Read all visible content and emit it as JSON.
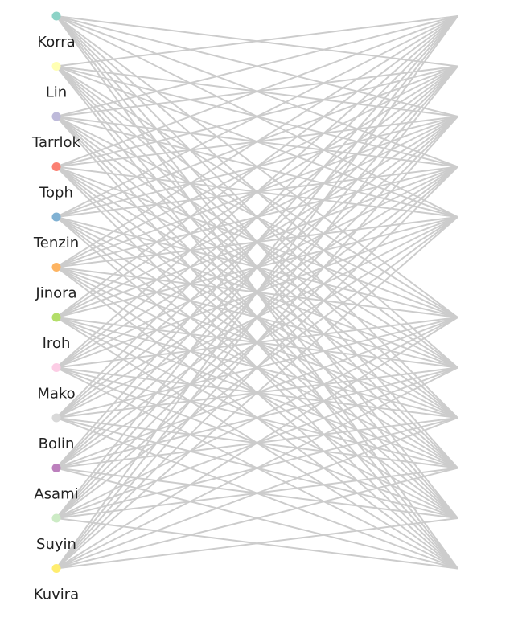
{
  "diagram": {
    "type": "bipartite-graph",
    "edge_color": "#cccccc",
    "nodes": [
      {
        "name": "Korra",
        "color": "#8dd3c7"
      },
      {
        "name": "Lin",
        "color": "#ffffb3"
      },
      {
        "name": "Tarrlok",
        "color": "#bebada"
      },
      {
        "name": "Toph",
        "color": "#fb8072"
      },
      {
        "name": "Tenzin",
        "color": "#80b1d3"
      },
      {
        "name": "Jinora",
        "color": "#fdb462"
      },
      {
        "name": "Iroh",
        "color": "#b3de69"
      },
      {
        "name": "Mako",
        "color": "#fccde5"
      },
      {
        "name": "Bolin",
        "color": "#d9d9d9"
      },
      {
        "name": "Asami",
        "color": "#bc80bd"
      },
      {
        "name": "Suyin",
        "color": "#ccebc5"
      },
      {
        "name": "Kuvira",
        "color": "#ffed6f"
      }
    ],
    "right_side_present": [
      1,
      1,
      1,
      1,
      1,
      0,
      1,
      1,
      1,
      1,
      1,
      1
    ]
  }
}
